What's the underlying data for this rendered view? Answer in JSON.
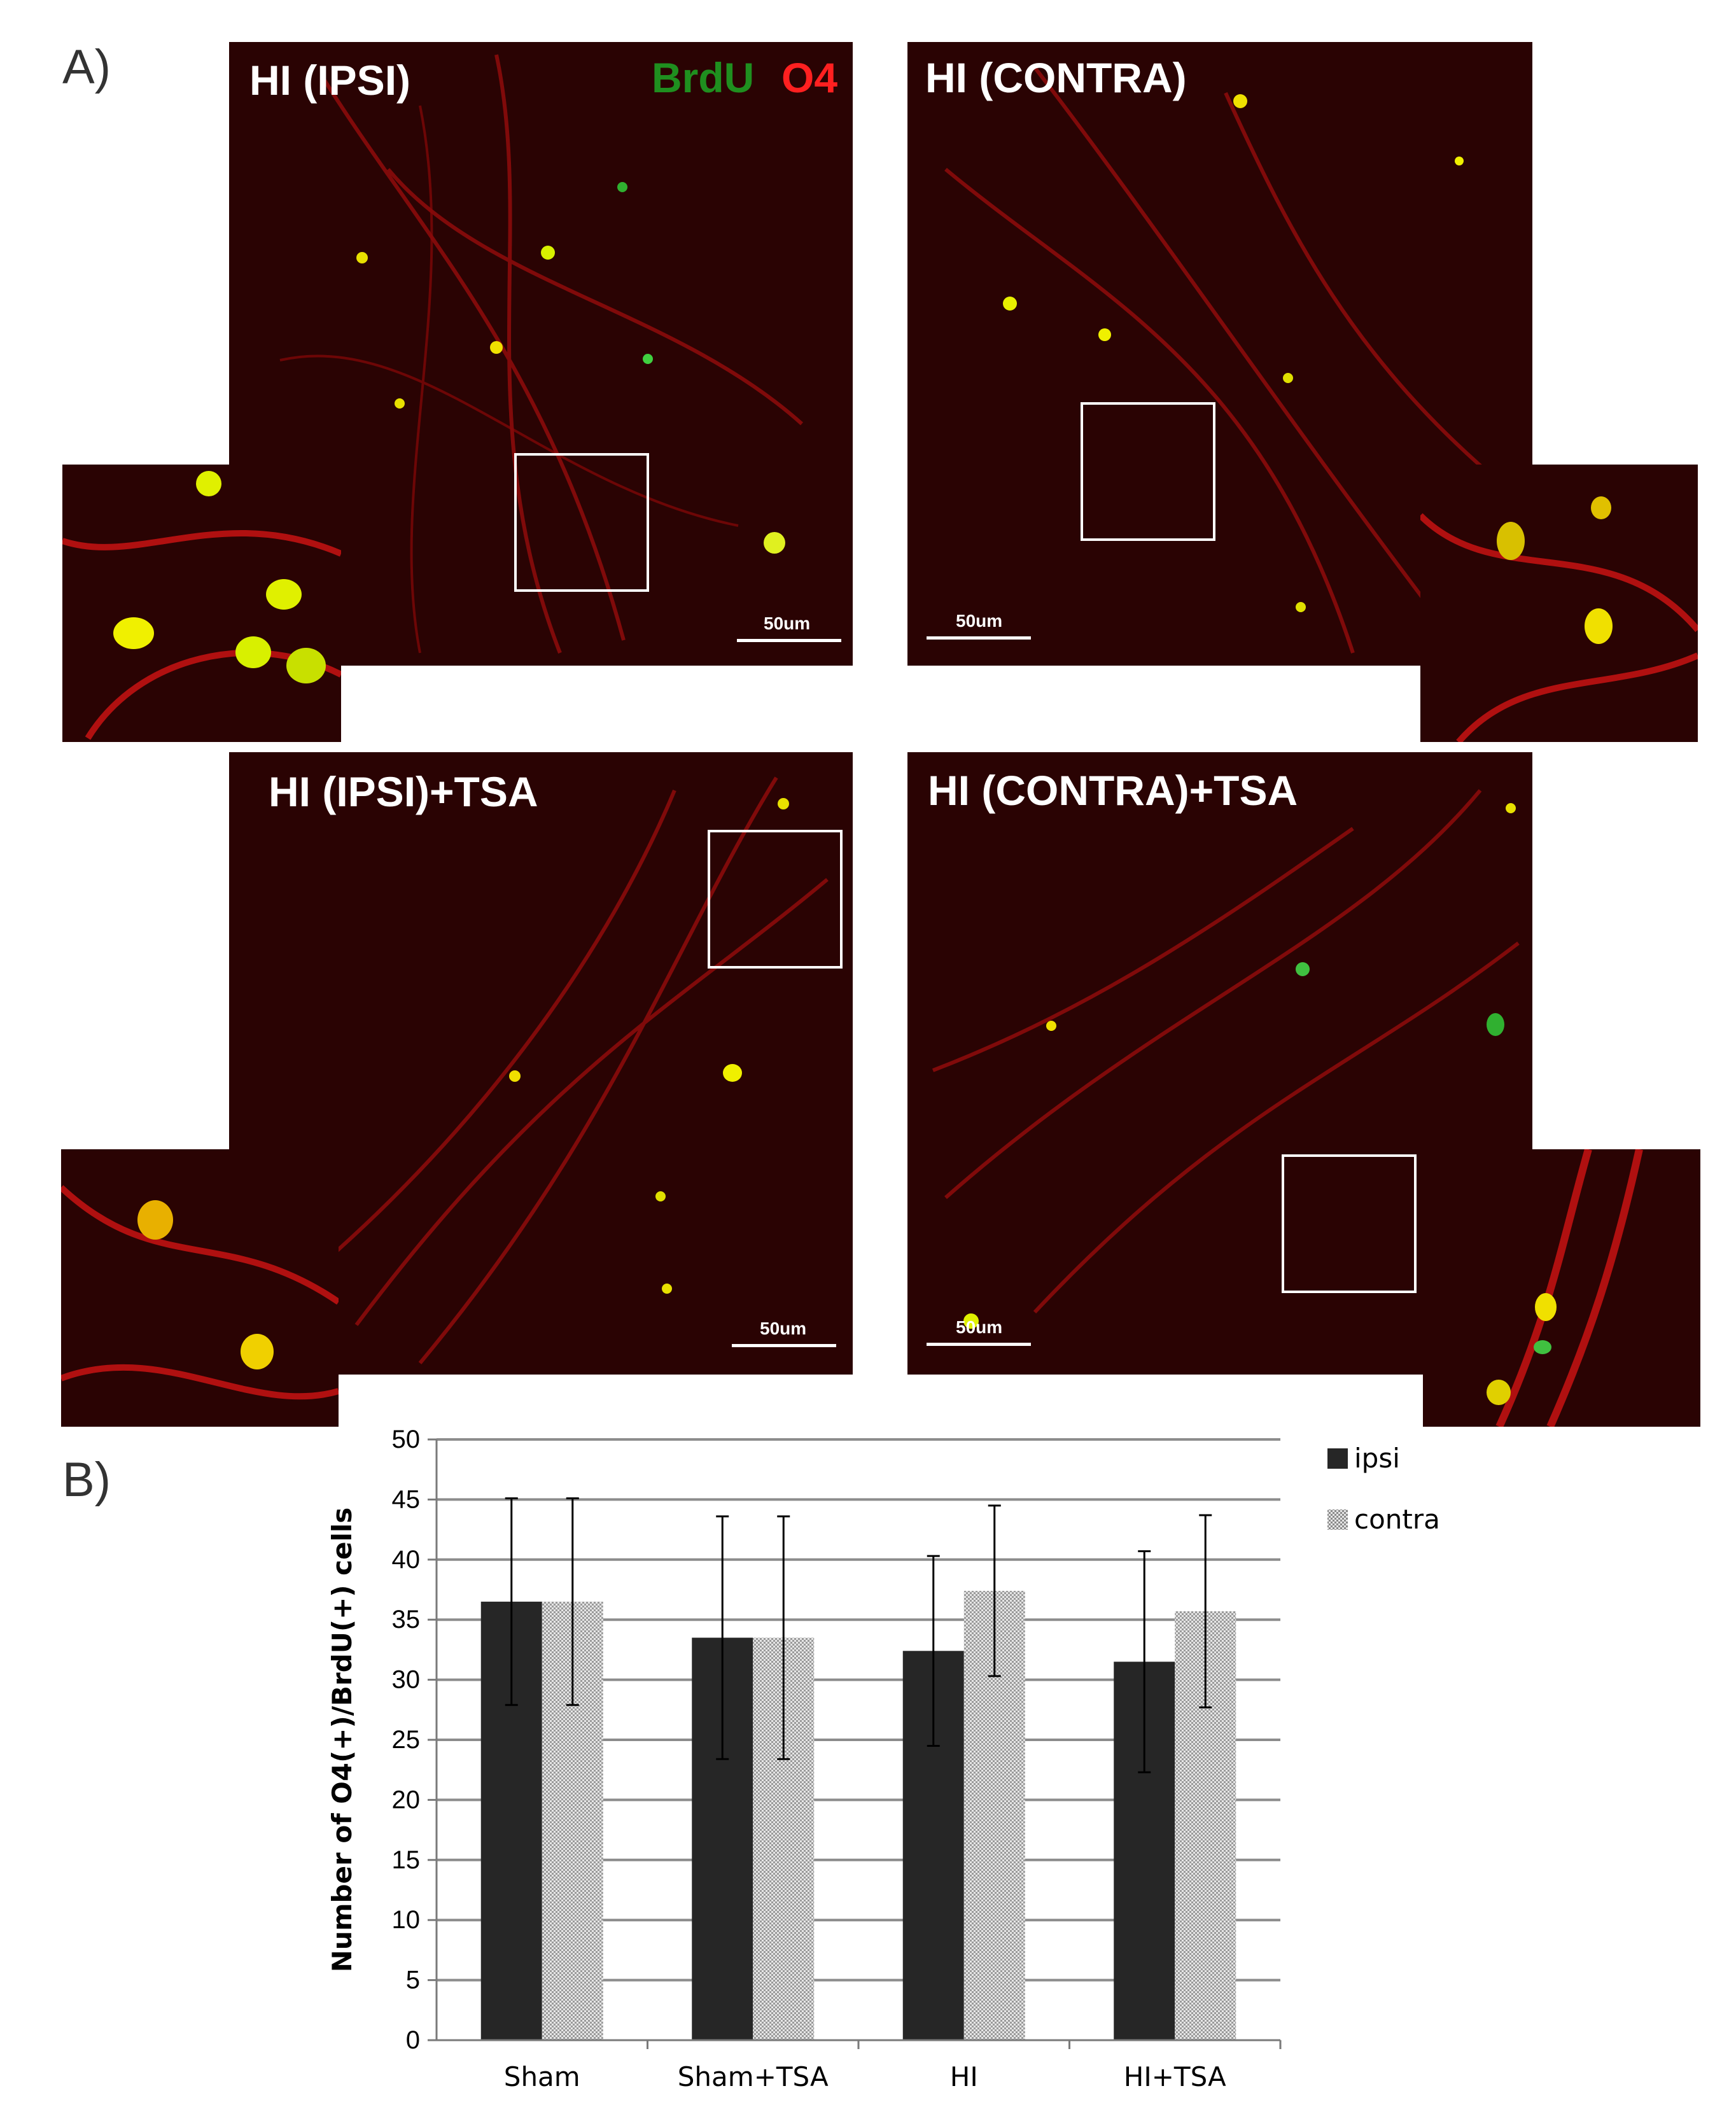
{
  "figure": {
    "panel_a_label": "A)",
    "panel_b_label": "B)"
  },
  "micrographs": [
    {
      "id": "hi-ipsi",
      "title": "HI (IPSI)",
      "scale_label": "50um",
      "stain_green": "BrdU",
      "stain_red": "O4"
    },
    {
      "id": "hi-contra",
      "title": "HI (CONTRA)",
      "scale_label": "50um"
    },
    {
      "id": "hi-ipsi-tsa",
      "title": "HI (IPSI)+TSA",
      "scale_label": "50um"
    },
    {
      "id": "hi-contra-tsa",
      "title": "HI (CONTRA)+TSA",
      "scale_label": "50um"
    }
  ],
  "colors": {
    "brdu_green": "#1f8f1f",
    "o4_red": "#ff2020",
    "tissue_bg": "#2a0303",
    "ipsi_bar": "#262626",
    "contra_bar": "#d8d8d8",
    "gridline": "#8c8c8c"
  },
  "chart_data": {
    "type": "bar",
    "categories": [
      "Sham",
      "Sham+TSA",
      "HI",
      "HI+TSA"
    ],
    "series": [
      {
        "name": "ipsi",
        "values": [
          36.5,
          33.5,
          32.4,
          31.5
        ],
        "error": [
          8.6,
          10.1,
          7.9,
          9.2
        ]
      },
      {
        "name": "contra",
        "values": [
          36.5,
          33.5,
          37.4,
          35.7
        ],
        "error": [
          8.6,
          10.1,
          7.1,
          8.0
        ]
      }
    ],
    "ylabel": "Number of O4(+)/BrdU(+) cells",
    "xlabel": "",
    "ylim": [
      0,
      50
    ],
    "ytick_step": 5,
    "yticks": [
      "0",
      "5",
      "10",
      "15",
      "20",
      "25",
      "30",
      "35",
      "40",
      "45",
      "50"
    ],
    "grid": true,
    "legend_position": "top-right"
  }
}
